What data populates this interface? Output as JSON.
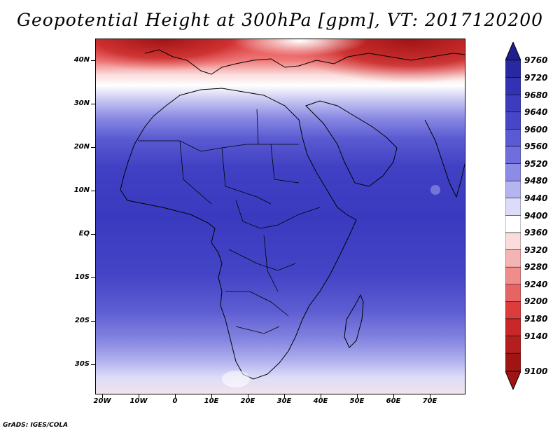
{
  "title": "Geopotential Height at 300hPa [gpm], VT: 2017120200",
  "credit": "GrADS: IGES/COLA",
  "map": {
    "lat_labels": [
      "40N",
      "30N",
      "20N",
      "10N",
      "EQ",
      "10S",
      "20S",
      "30S"
    ],
    "lat_values": [
      40,
      30,
      20,
      10,
      0,
      -10,
      -20,
      -30
    ],
    "lon_labels": [
      "20W",
      "10W",
      "0",
      "10E",
      "20E",
      "30E",
      "40E",
      "50E",
      "60E",
      "70E"
    ],
    "lon_values": [
      -20,
      -10,
      0,
      10,
      20,
      30,
      40,
      50,
      60,
      70
    ],
    "lat_range": [
      -37,
      45
    ],
    "lon_range": [
      -22,
      80
    ]
  },
  "colorbar": {
    "levels": [
      "9760",
      "9720",
      "9680",
      "9640",
      "9600",
      "9560",
      "9520",
      "9480",
      "9440",
      "9400",
      "9360",
      "9320",
      "9280",
      "9240",
      "9200",
      "9180",
      "9140",
      "9100"
    ],
    "colors": [
      "#1e1e8c",
      "#2828a0",
      "#3232b4",
      "#3c3cbe",
      "#4646c8",
      "#5a5ad2",
      "#6e6edc",
      "#8c8ce6",
      "#b4b4f0",
      "#dcdcf8",
      "#ffffff",
      "#fadcdc",
      "#f5b4b4",
      "#f08c8c",
      "#e66464",
      "#dc3c3c",
      "#c82828",
      "#a01414"
    ]
  }
}
